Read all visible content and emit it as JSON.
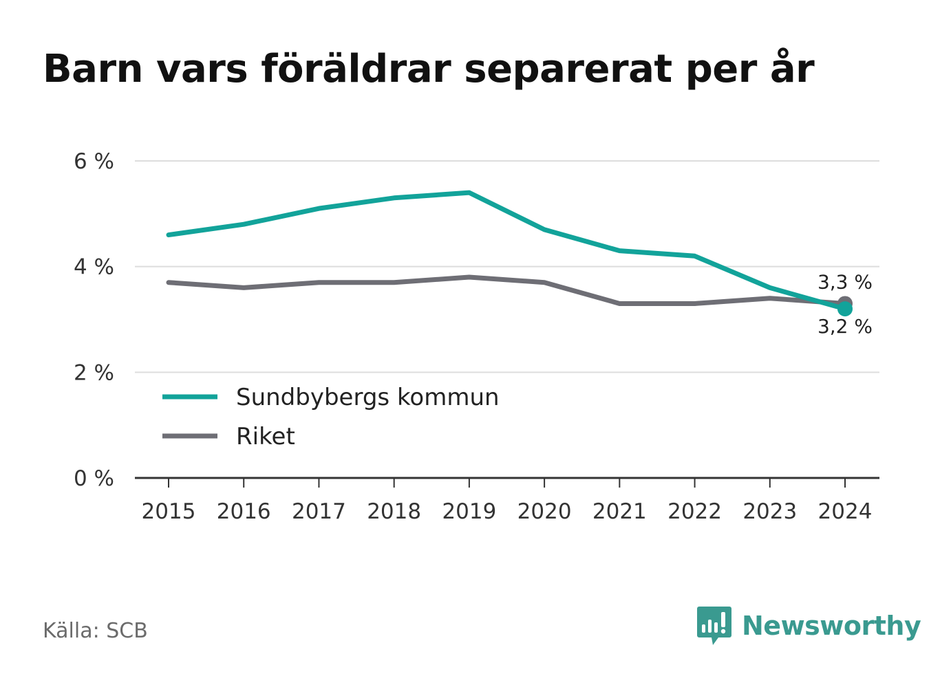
{
  "title": "Barn vars föräldrar separerat per år",
  "source": "Källa: SCB",
  "brand": "Newsworthy",
  "colors": {
    "Sundbybergs kommun": "#12a39a",
    "Riket": "#6e6e75",
    "brand": "#3a9a90"
  },
  "chart_data": {
    "type": "line",
    "title": "Barn vars föräldrar separerat per år",
    "xlabel": "",
    "ylabel": "",
    "x": [
      "2015",
      "2016",
      "2017",
      "2018",
      "2019",
      "2020",
      "2021",
      "2022",
      "2023",
      "2024"
    ],
    "series": [
      {
        "name": "Sundbybergs kommun",
        "values": [
          4.6,
          4.8,
          5.1,
          5.3,
          5.4,
          4.7,
          4.3,
          4.2,
          3.6,
          3.2
        ]
      },
      {
        "name": "Riket",
        "values": [
          3.7,
          3.6,
          3.7,
          3.7,
          3.8,
          3.7,
          3.3,
          3.3,
          3.4,
          3.3
        ]
      }
    ],
    "ylim": [
      0,
      6
    ],
    "yticks": [
      0,
      2,
      4,
      6
    ],
    "ytick_labels": [
      "0 %",
      "2 %",
      "4 %",
      "6 %"
    ],
    "grid": true,
    "legend_position": "bottom-left",
    "end_labels": [
      {
        "series": "Riket",
        "text": "3,3 %"
      },
      {
        "series": "Sundbybergs kommun",
        "text": "3,2 %"
      }
    ]
  }
}
